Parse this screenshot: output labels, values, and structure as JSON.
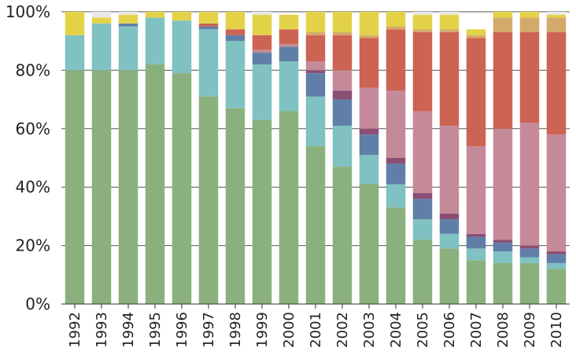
{
  "chart_data": {
    "type": "bar",
    "stacked": true,
    "normalized": true,
    "title": "",
    "xlabel": "",
    "ylabel": "",
    "ylim": [
      0,
      100
    ],
    "yticks": [
      "0%",
      "20%",
      "40%",
      "60%",
      "80%",
      "100%"
    ],
    "grid": true,
    "legend": "none",
    "categories": [
      "1992",
      "1993",
      "1994",
      "1995",
      "1996",
      "1997",
      "1998",
      "1999",
      "2000",
      "2001",
      "2002",
      "2003",
      "2004",
      "2005",
      "2006",
      "2007",
      "2008",
      "2009",
      "2010"
    ],
    "series": [
      {
        "color": "#8ab17d",
        "values": [
          80,
          80,
          80,
          82,
          79,
          71,
          67,
          63,
          66,
          54,
          47,
          41,
          33,
          22,
          19,
          15,
          14,
          14,
          12
        ]
      },
      {
        "color": "#80c1c1",
        "values": [
          12,
          16,
          15,
          16,
          18,
          23,
          23,
          19,
          17,
          17,
          14,
          10,
          8,
          7,
          5,
          4,
          4,
          2,
          2
        ]
      },
      {
        "color": "#5f7fa8",
        "values": [
          0,
          0,
          1,
          0,
          0,
          1,
          2,
          4,
          5,
          8,
          9,
          7,
          7,
          7,
          5,
          4,
          3,
          3,
          3
        ]
      },
      {
        "color": "#8b4f74",
        "values": [
          0,
          0,
          0,
          0,
          0,
          0,
          0,
          0,
          0,
          1,
          3,
          2,
          2,
          2,
          2,
          1,
          1,
          1,
          1
        ]
      },
      {
        "color": "#c58a99",
        "values": [
          0,
          0,
          0,
          0,
          0,
          0,
          0,
          1,
          1,
          3,
          7,
          14,
          23,
          28,
          30,
          30,
          38,
          42,
          40
        ]
      },
      {
        "color": "#cd6352",
        "values": [
          0,
          0,
          0,
          0,
          0,
          1,
          2,
          5,
          5,
          9,
          12,
          17,
          21,
          27,
          32,
          37,
          33,
          31,
          35
        ]
      },
      {
        "color": "#d4aa6a",
        "values": [
          0,
          0,
          0,
          0,
          0,
          0,
          0,
          0,
          0,
          1,
          1,
          1,
          1,
          1,
          1,
          1,
          5,
          5,
          5
        ]
      },
      {
        "color": "#e3d248",
        "values": [
          8,
          2,
          3,
          2,
          3,
          4,
          6,
          7,
          5,
          7,
          7,
          8,
          5,
          5,
          5,
          2,
          2,
          2,
          1
        ]
      },
      {
        "color": "#e8e8e8",
        "values": [
          0,
          2,
          1,
          0,
          0,
          0,
          0,
          1,
          0,
          0,
          0,
          0,
          0,
          1,
          1,
          0,
          0,
          0,
          1
        ]
      }
    ]
  }
}
